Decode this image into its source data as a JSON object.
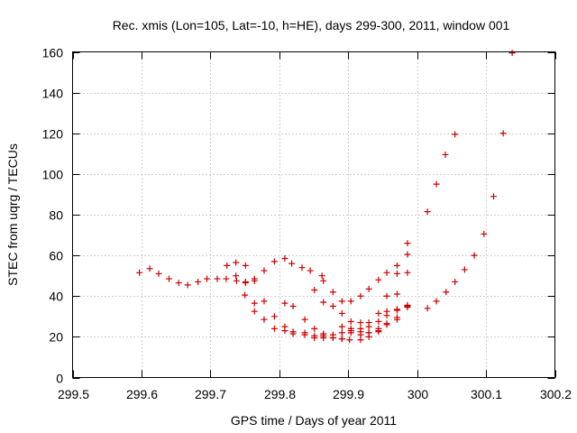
{
  "chart_data": {
    "type": "scatter",
    "title": "Rec. xmis (Lon=105, Lat=-10, h=HE), days 299-300, 2011, window 001",
    "xlabel": "GPS time / Days of year 2011",
    "ylabel": "STEC from uqrg / TECUs",
    "xlim": [
      299.5,
      300.2
    ],
    "ylim": [
      0,
      160
    ],
    "xticks": [
      "299.5",
      "299.6",
      "299.7",
      "299.8",
      "299.9",
      "300",
      "300.1",
      "300.2"
    ],
    "yticks": [
      "0",
      "20",
      "40",
      "60",
      "80",
      "100",
      "120",
      "140",
      "160"
    ],
    "grid": true,
    "marker": "+",
    "marker_color": "#cc0000",
    "points": [
      [
        299.597,
        51.5
      ],
      [
        299.612,
        53.5
      ],
      [
        299.625,
        51.0
      ],
      [
        299.64,
        48.5
      ],
      [
        299.654,
        46.5
      ],
      [
        299.667,
        45.5
      ],
      [
        299.682,
        47.0
      ],
      [
        299.695,
        48.5
      ],
      [
        299.71,
        48.5
      ],
      [
        299.723,
        48.5
      ],
      [
        299.738,
        47.5
      ],
      [
        299.751,
        47.0
      ],
      [
        299.764,
        48.5
      ],
      [
        299.778,
        52.5
      ],
      [
        299.793,
        57.0
      ],
      [
        299.808,
        58.5
      ],
      [
        299.818,
        56.0
      ],
      [
        299.833,
        54.0
      ],
      [
        299.845,
        52.5
      ],
      [
        299.862,
        50.0
      ],
      [
        299.724,
        55.0
      ],
      [
        299.737,
        56.5
      ],
      [
        299.751,
        55.0
      ],
      [
        299.737,
        50.0
      ],
      [
        299.751,
        46.5
      ],
      [
        299.764,
        47.5
      ],
      [
        299.75,
        40.5
      ],
      [
        299.764,
        36.5
      ],
      [
        299.778,
        37.5
      ],
      [
        299.793,
        30.0
      ],
      [
        299.808,
        25.0
      ],
      [
        299.82,
        22.5
      ],
      [
        299.837,
        22.0
      ],
      [
        299.851,
        20.5
      ],
      [
        299.864,
        20.5
      ],
      [
        299.878,
        19.5
      ],
      [
        299.891,
        19.0
      ],
      [
        299.902,
        18.5
      ],
      [
        299.918,
        18.5
      ],
      [
        299.93,
        20.0
      ],
      [
        299.944,
        24.0
      ],
      [
        299.956,
        26.5
      ],
      [
        299.971,
        29.5
      ],
      [
        299.986,
        35.0
      ],
      [
        299.764,
        32.5
      ],
      [
        299.778,
        28.5
      ],
      [
        299.793,
        24.0
      ],
      [
        299.808,
        23.0
      ],
      [
        299.82,
        21.5
      ],
      [
        299.837,
        21.0
      ],
      [
        299.851,
        19.5
      ],
      [
        299.864,
        19.5
      ],
      [
        299.878,
        19.5
      ],
      [
        299.891,
        19.0
      ],
      [
        299.904,
        22.0
      ],
      [
        299.918,
        21.0
      ],
      [
        299.93,
        22.0
      ],
      [
        299.944,
        23.0
      ],
      [
        299.956,
        26.0
      ],
      [
        299.971,
        28.5
      ],
      [
        299.986,
        34.5
      ],
      [
        299.808,
        36.5
      ],
      [
        299.82,
        35.0
      ],
      [
        299.837,
        28.5
      ],
      [
        299.851,
        24.0
      ],
      [
        299.864,
        21.5
      ],
      [
        299.878,
        21.0
      ],
      [
        299.891,
        22.0
      ],
      [
        299.904,
        23.0
      ],
      [
        299.918,
        24.0
      ],
      [
        299.93,
        25.0
      ],
      [
        299.944,
        27.5
      ],
      [
        299.956,
        30.5
      ],
      [
        299.971,
        33.5
      ],
      [
        299.986,
        35.5
      ],
      [
        299.851,
        43.0
      ],
      [
        299.864,
        37.0
      ],
      [
        299.878,
        35.0
      ],
      [
        299.891,
        31.5
      ],
      [
        299.904,
        27.5
      ],
      [
        299.918,
        27.0
      ],
      [
        299.93,
        27.0
      ],
      [
        299.944,
        31.5
      ],
      [
        299.956,
        32.5
      ],
      [
        299.971,
        33.0
      ],
      [
        299.864,
        47.5
      ],
      [
        299.878,
        42.0
      ],
      [
        299.891,
        37.5
      ],
      [
        299.904,
        37.5
      ],
      [
        299.918,
        40.0
      ],
      [
        299.93,
        43.5
      ],
      [
        299.944,
        48.0
      ],
      [
        299.956,
        51.5
      ],
      [
        299.971,
        55.0
      ],
      [
        299.986,
        60.5
      ],
      [
        299.956,
        40.0
      ],
      [
        299.971,
        41.0
      ],
      [
        299.986,
        51.5
      ],
      [
        299.971,
        51.0
      ],
      [
        299.986,
        66.0
      ],
      [
        299.891,
        25.0
      ],
      [
        299.904,
        24.0
      ],
      [
        299.918,
        22.5
      ],
      [
        299.93,
        22.0
      ],
      [
        299.944,
        22.5
      ],
      [
        300.015,
        34.0
      ],
      [
        300.028,
        37.5
      ],
      [
        300.042,
        42.0
      ],
      [
        300.055,
        47.0
      ],
      [
        300.069,
        53.0
      ],
      [
        300.083,
        60.0
      ],
      [
        300.097,
        70.5
      ],
      [
        300.111,
        89.0
      ],
      [
        300.125,
        120.0
      ],
      [
        300.138,
        159.5
      ],
      [
        300.015,
        81.5
      ],
      [
        300.028,
        95.0
      ],
      [
        300.041,
        109.5
      ],
      [
        300.055,
        119.5
      ]
    ]
  }
}
